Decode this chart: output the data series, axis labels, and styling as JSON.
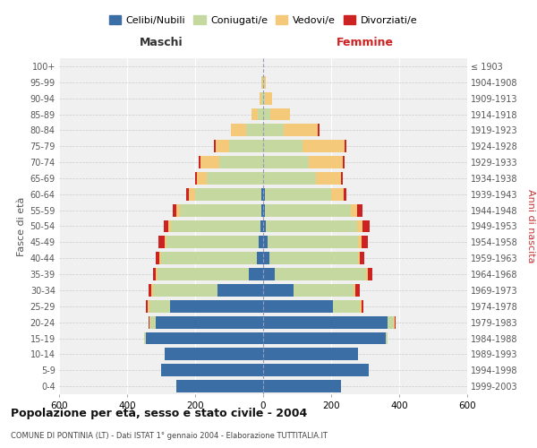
{
  "age_groups": [
    "0-4",
    "5-9",
    "10-14",
    "15-19",
    "20-24",
    "25-29",
    "30-34",
    "35-39",
    "40-44",
    "45-49",
    "50-54",
    "55-59",
    "60-64",
    "65-69",
    "70-74",
    "75-79",
    "80-84",
    "85-89",
    "90-94",
    "95-99",
    "100+"
  ],
  "birth_years": [
    "1999-2003",
    "1994-1998",
    "1989-1993",
    "1984-1988",
    "1979-1983",
    "1974-1978",
    "1969-1973",
    "1964-1968",
    "1959-1963",
    "1954-1958",
    "1949-1953",
    "1944-1948",
    "1939-1943",
    "1934-1938",
    "1929-1933",
    "1924-1928",
    "1919-1923",
    "1914-1918",
    "1909-1913",
    "1904-1908",
    "≤ 1903"
  ],
  "male_celibe": [
    255,
    300,
    290,
    345,
    315,
    275,
    135,
    42,
    18,
    12,
    8,
    5,
    5,
    0,
    0,
    0,
    0,
    0,
    0,
    0,
    0
  ],
  "male_coniugato": [
    0,
    0,
    0,
    5,
    20,
    60,
    190,
    268,
    282,
    272,
    262,
    240,
    196,
    165,
    130,
    100,
    50,
    15,
    5,
    2,
    0
  ],
  "male_vedovo": [
    0,
    0,
    0,
    0,
    0,
    5,
    5,
    5,
    5,
    5,
    8,
    10,
    18,
    30,
    55,
    40,
    45,
    20,
    5,
    2,
    0
  ],
  "male_divorziato": [
    0,
    0,
    0,
    0,
    2,
    5,
    8,
    10,
    12,
    18,
    15,
    10,
    8,
    5,
    5,
    5,
    0,
    0,
    0,
    0,
    0
  ],
  "female_celibe": [
    230,
    310,
    280,
    360,
    365,
    205,
    90,
    35,
    18,
    12,
    8,
    5,
    5,
    0,
    0,
    0,
    0,
    0,
    0,
    0,
    0
  ],
  "female_coniugato": [
    0,
    0,
    0,
    5,
    20,
    80,
    175,
    268,
    262,
    267,
    267,
    252,
    196,
    155,
    135,
    115,
    60,
    20,
    5,
    2,
    0
  ],
  "female_vedovo": [
    0,
    0,
    0,
    0,
    2,
    5,
    5,
    5,
    5,
    10,
    18,
    20,
    35,
    75,
    100,
    125,
    100,
    60,
    20,
    5,
    0
  ],
  "female_divorziato": [
    0,
    0,
    0,
    0,
    2,
    5,
    15,
    12,
    12,
    18,
    20,
    15,
    10,
    5,
    5,
    5,
    5,
    0,
    0,
    0,
    0
  ],
  "color_celibe": "#3A6EA5",
  "color_coniugato": "#C5D8A0",
  "color_vedovo": "#F5C97A",
  "color_divorziato": "#CC2222",
  "title": "Popolazione per età, sesso e stato civile - 2004",
  "subtitle": "COMUNE DI PONTINIA (LT) - Dati ISTAT 1° gennaio 2004 - Elaborazione TUTTITALIA.IT",
  "xlabel_left": "Maschi",
  "xlabel_right": "Femmine",
  "ylabel_left": "Fasce di età",
  "ylabel_right": "Anni di nascita",
  "xlim": 600,
  "bg_color": "#ffffff",
  "plot_bg": "#f0f0f0"
}
